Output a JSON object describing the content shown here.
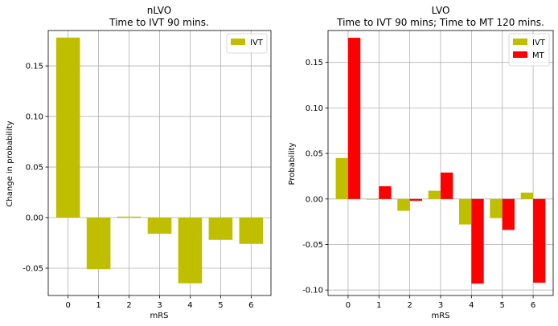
{
  "colors": {
    "IVT": "#bfbf00",
    "MT": "#ff0000",
    "grid": "#b0b0b0"
  },
  "chart_data": [
    {
      "type": "bar",
      "title": "nLVO",
      "subtitle": "Time to IVT 90 mins.",
      "xlabel": "mRS",
      "ylabel": "Change in probability",
      "categories": [
        "0",
        "1",
        "2",
        "3",
        "4",
        "5",
        "6"
      ],
      "ylim": [
        -0.077,
        0.185
      ],
      "yticks": [
        "-0.05",
        "0.00",
        "0.05",
        "0.10",
        "0.15"
      ],
      "ytick_values": [
        -0.05,
        0.0,
        0.05,
        0.1,
        0.15
      ],
      "grid": true,
      "legend": "top-right",
      "series": [
        {
          "name": "IVT",
          "color": "#bfbf00",
          "values": [
            0.178,
            -0.051,
            0.001,
            -0.016,
            -0.065,
            -0.022,
            -0.026
          ]
        }
      ]
    },
    {
      "type": "bar",
      "title": "LVO",
      "subtitle": "Time to IVT 90 mins; Time to MT 120 mins.",
      "xlabel": "mRS",
      "ylabel": "Probability",
      "categories": [
        "0",
        "1",
        "2",
        "3",
        "4",
        "5",
        "6"
      ],
      "ylim": [
        -0.106,
        0.185
      ],
      "yticks": [
        "-0.10",
        "-0.05",
        "0.00",
        "0.05",
        "0.10",
        "0.15"
      ],
      "ytick_values": [
        -0.1,
        -0.05,
        0.0,
        0.05,
        0.1,
        0.15
      ],
      "grid": true,
      "legend": "top-right",
      "series": [
        {
          "name": "IVT",
          "color": "#bfbf00",
          "values": [
            0.045,
            0.0,
            -0.013,
            0.009,
            -0.028,
            -0.021,
            0.007
          ]
        },
        {
          "name": "MT",
          "color": "#ff0000",
          "values": [
            0.177,
            0.014,
            -0.002,
            0.029,
            -0.093,
            -0.034,
            -0.092
          ]
        }
      ]
    }
  ]
}
